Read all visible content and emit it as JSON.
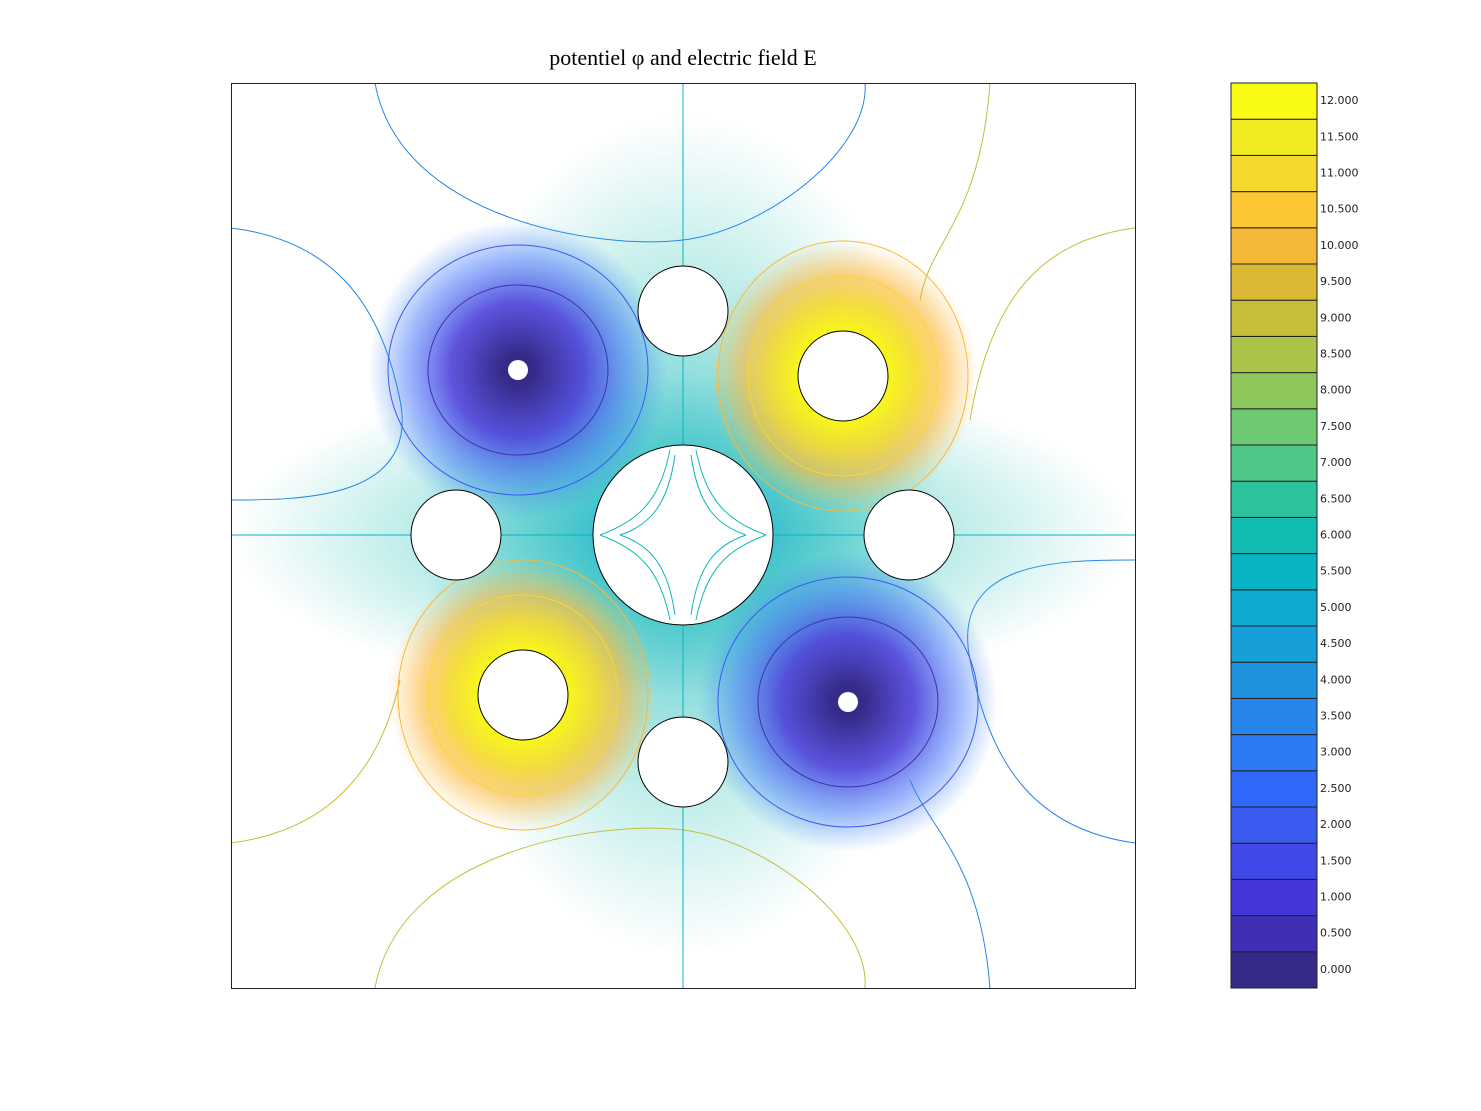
{
  "chart_data": {
    "type": "contour",
    "title": "potentiel φ and electric field E",
    "colorbar": {
      "ticks": [
        {
          "value": 0,
          "label": "0.000"
        },
        {
          "value": 0.5,
          "label": "0.500"
        },
        {
          "value": 1,
          "label": "1.000"
        },
        {
          "value": 1.5,
          "label": "1.500"
        },
        {
          "value": 2,
          "label": "2.000"
        },
        {
          "value": 2.5,
          "label": "2.500"
        },
        {
          "value": 3,
          "label": "3.000"
        },
        {
          "value": 3.5,
          "label": "3.500"
        },
        {
          "value": 4,
          "label": "4.000"
        },
        {
          "value": 4.5,
          "label": "4.500"
        },
        {
          "value": 5,
          "label": "5.000"
        },
        {
          "value": 5.5,
          "label": "5.500"
        },
        {
          "value": 6,
          "label": "6.000"
        },
        {
          "value": 6.5,
          "label": "6.500"
        },
        {
          "value": 7,
          "label": "7.000"
        },
        {
          "value": 7.5,
          "label": "7.500"
        },
        {
          "value": 8,
          "label": "8.000"
        },
        {
          "value": 8.5,
          "label": "8.500"
        },
        {
          "value": 9,
          "label": "9.000"
        },
        {
          "value": 9.5,
          "label": "9.500"
        },
        {
          "value": 10,
          "label": "10.000"
        },
        {
          "value": 10.5,
          "label": "10.500"
        },
        {
          "value": 11,
          "label": "11.000"
        },
        {
          "value": 11.5,
          "label": "11.500"
        },
        {
          "value": 12,
          "label": "12.000"
        }
      ],
      "colors": [
        "#352a87",
        "#3f2fb5",
        "#4437d8",
        "#4148e8",
        "#3a5af0",
        "#3068f9",
        "#2c7af5",
        "#2585e8",
        "#1e92df",
        "#169fd8",
        "#0eaad0",
        "#08b4c4",
        "#12bcb1",
        "#2cc29e",
        "#4dc688",
        "#6ec872",
        "#8dc75c",
        "#aac44a",
        "#c4be3a",
        "#dcb932",
        "#f5b937",
        "#fdc733",
        "#f5d92c",
        "#f2ea22",
        "#f9fb15"
      ]
    }
  }
}
